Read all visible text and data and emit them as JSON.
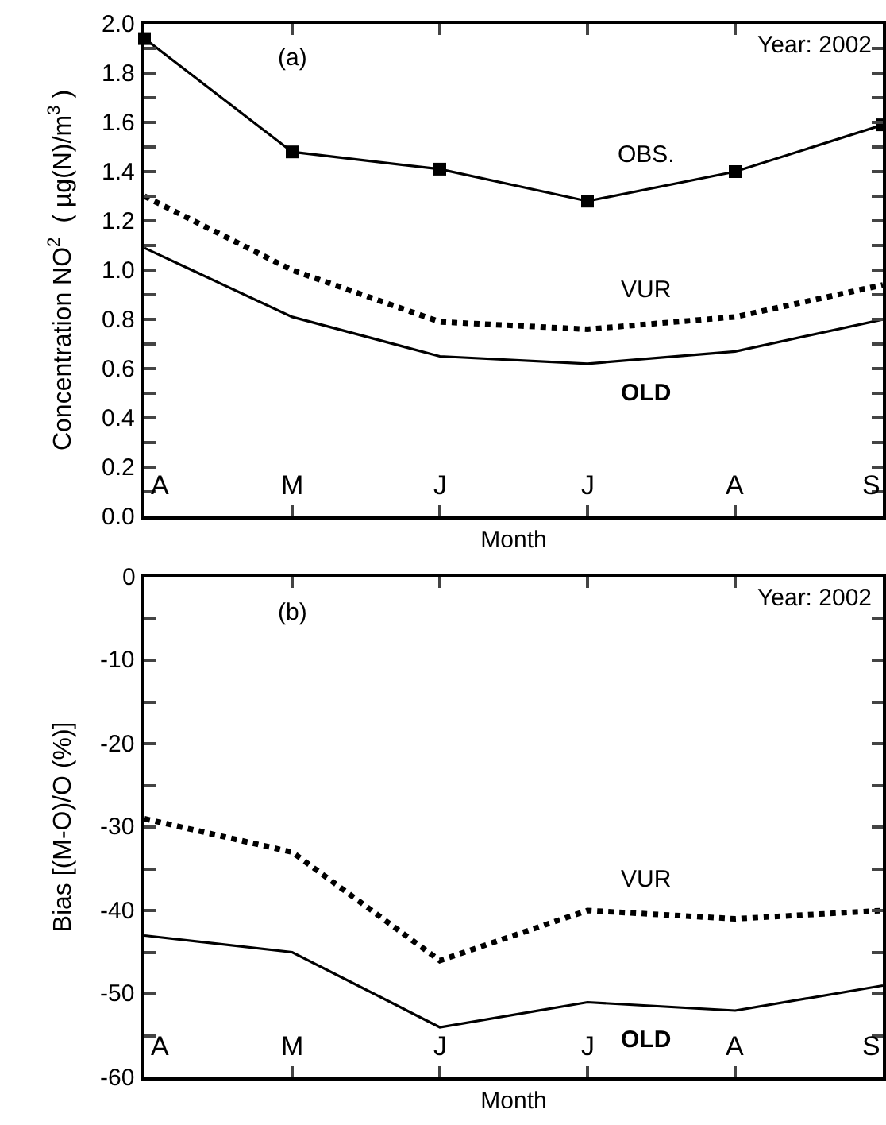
{
  "chart_data": [
    {
      "type": "line",
      "categories": [
        "A",
        "M",
        "J",
        "J",
        "A",
        "S"
      ],
      "ylabel": "Concentration NO$^{2}$  ( µg(N)/m$^{3}$ )",
      "xlabel": "Month",
      "annotations": [
        "(a)",
        "Year: 2002"
      ],
      "ylim": [
        0,
        2
      ],
      "yticks": [
        {
          "value": 0,
          "label": "0.0"
        },
        {
          "value": 0.1,
          "label": null
        },
        0.2,
        {
          "value": 0.3,
          "label": null
        },
        0.4,
        {
          "value": 0.5,
          "label": null
        },
        0.6,
        {
          "value": 0.7,
          "label": null
        },
        0.8,
        {
          "value": 0.9,
          "label": null
        },
        {
          "value": 1,
          "label": "1.0"
        },
        {
          "value": 1.1,
          "label": null
        },
        1.2,
        {
          "value": 1.3,
          "label": null
        },
        1.4,
        {
          "value": 1.5,
          "label": null
        },
        1.6,
        {
          "value": 1.7,
          "label": null
        },
        1.8,
        {
          "value": 1.9,
          "label": null
        },
        {
          "value": 2,
          "label": "2.0"
        }
      ],
      "grid": false,
      "legend": false,
      "series": [
        {
          "name": "OBS.",
          "color": "#000000",
          "marker": "square",
          "line_style": "solid",
          "values": [
            1.94,
            1.48,
            1.41,
            1.28,
            1.4,
            1.59
          ]
        },
        {
          "name": "VUR",
          "color": "#000000",
          "marker": "none",
          "line_style": "dotted",
          "values": [
            1.3,
            1.0,
            0.79,
            0.76,
            0.81,
            0.94
          ]
        },
        {
          "name": "OLD",
          "color": "#000000",
          "marker": "none",
          "line_style": "solid",
          "values": [
            1.09,
            0.81,
            0.65,
            0.62,
            0.67,
            0.8
          ]
        }
      ]
    },
    {
      "type": "line",
      "categories": [
        "A",
        "M",
        "J",
        "J",
        "A",
        "S"
      ],
      "ylabel": "Bias [(M-O)/O (%)]",
      "xlabel": "Month",
      "annotations": [
        "(b)",
        "Year: 2002"
      ],
      "ylim": [
        -60,
        0
      ],
      "yticks": [
        -60,
        {
          "value": -55,
          "label": null
        },
        -50,
        {
          "value": -45,
          "label": null
        },
        -40,
        {
          "value": -35,
          "label": null
        },
        -30,
        {
          "value": -25,
          "label": null
        },
        -20,
        {
          "value": -15,
          "label": null
        },
        -10,
        {
          "value": -5,
          "label": null
        },
        0
      ],
      "grid": false,
      "legend": false,
      "series": [
        {
          "name": "VUR",
          "color": "#000000",
          "marker": "none",
          "line_style": "dotted",
          "values": [
            -29,
            -33,
            -46,
            -40,
            -41,
            -40
          ]
        },
        {
          "name": "OLD",
          "color": "#000000",
          "marker": "none",
          "line_style": "solid",
          "values": [
            -43,
            -45,
            -54,
            -51,
            -52,
            -49
          ]
        }
      ]
    }
  ]
}
